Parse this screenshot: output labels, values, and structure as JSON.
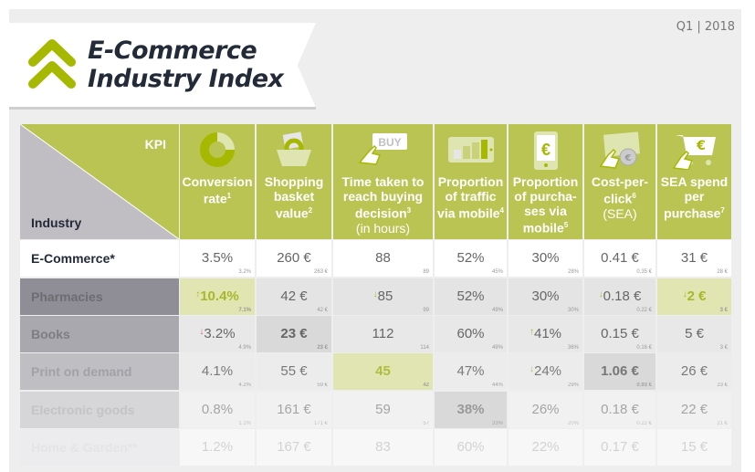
{
  "header": {
    "title_line1": "E-Commerce",
    "title_line2": "Industry Index",
    "period": "Q1 | 2018",
    "logo_icon": "double-chevron-up-icon"
  },
  "colors": {
    "accent": "#b9c452",
    "highlight": "#e0e5b1",
    "dark": "#232a38",
    "up_green": "#a7b82a",
    "down_red": "#e0607a"
  },
  "table": {
    "corner_kpi": "KPI",
    "corner_industry": "Industry",
    "columns": [
      {
        "label": "Conversion rate",
        "sup": "1",
        "sub": "",
        "icon": "donut-chart-icon"
      },
      {
        "label": "Shopping basket value",
        "sup": "2",
        "sub": "",
        "icon": "shopping-basket-icon"
      },
      {
        "label": "Time taken to reach buying decision",
        "sup": "3",
        "sub": "(in hours)",
        "icon": "buy-button-click-icon"
      },
      {
        "label": "Proportion of traffic via mobile",
        "sup": "4",
        "sub": "",
        "icon": "tablet-bar-chart-icon"
      },
      {
        "label": "Proportion of purcha-ses via mobile",
        "sup": "5",
        "sub": "",
        "icon": "phone-euro-icon"
      },
      {
        "label": "Cost-per-click",
        "sup": "6",
        "sub": "(SEA)",
        "icon": "banknote-click-icon"
      },
      {
        "label": "SEA spend per purchase",
        "sup": "7",
        "sub": "",
        "icon": "cart-euro-icon"
      }
    ],
    "rows": [
      {
        "name": "E-Commerce*",
        "cells": [
          {
            "v": "3.5%",
            "p": "3.2%"
          },
          {
            "v": "260 €",
            "p": "263 €"
          },
          {
            "v": "88",
            "p": "89"
          },
          {
            "v": "52%",
            "p": "45%"
          },
          {
            "v": "30%",
            "p": "28%"
          },
          {
            "v": "0.41 €",
            "p": "0.35 €"
          },
          {
            "v": "31 €",
            "p": "28 €"
          }
        ]
      },
      {
        "name": "Pharmacies",
        "cells": [
          {
            "v": "10.4%",
            "p": "7.1%",
            "arrow": "↑",
            "hl": true
          },
          {
            "v": "42 €",
            "p": "42 €"
          },
          {
            "v": "85",
            "p": "99",
            "arrow": "↓"
          },
          {
            "v": "52%",
            "p": "49%"
          },
          {
            "v": "30%",
            "p": "30%"
          },
          {
            "v": "0.18 €",
            "p": "0.22 €",
            "arrow": "↓"
          },
          {
            "v": "2 €",
            "p": "3 €",
            "arrow": "↓",
            "hl": true
          }
        ]
      },
      {
        "name": "Books",
        "cells": [
          {
            "v": "3.2%",
            "p": "4.9%",
            "arrow": "↓",
            "red": true
          },
          {
            "v": "23 €",
            "p": "23 €",
            "dark": true
          },
          {
            "v": "112",
            "p": "114"
          },
          {
            "v": "60%",
            "p": "49%"
          },
          {
            "v": "41%",
            "p": "36%",
            "arrow": "↑"
          },
          {
            "v": "0.15 €",
            "p": "0.16 €"
          },
          {
            "v": "5 €",
            "p": "3 €"
          }
        ]
      },
      {
        "name": "Print on demand",
        "cells": [
          {
            "v": "4.1%",
            "p": "4.2%"
          },
          {
            "v": "55 €",
            "p": "59 €"
          },
          {
            "v": "45",
            "p": "42",
            "hl": true
          },
          {
            "v": "47%",
            "p": "44%"
          },
          {
            "v": "24%",
            "p": "29%",
            "arrow": "↓"
          },
          {
            "v": "1.06 €",
            "p": "0.93 €",
            "dark": true
          },
          {
            "v": "26 €",
            "p": "23 €"
          }
        ]
      },
      {
        "name": "Electronic goods",
        "cells": [
          {
            "v": "0.8%",
            "p": "1.1%"
          },
          {
            "v": "161 €",
            "p": "171 €"
          },
          {
            "v": "59",
            "p": "57"
          },
          {
            "v": "38%",
            "p": "33%",
            "dark": true
          },
          {
            "v": "26%",
            "p": "20%"
          },
          {
            "v": "0.18 €",
            "p": "0.22 €"
          },
          {
            "v": "22 €",
            "p": "21 €"
          }
        ]
      },
      {
        "name": "Home & Garden**",
        "cells": [
          {
            "v": "1.2%"
          },
          {
            "v": "167 €"
          },
          {
            "v": "83"
          },
          {
            "v": "60%"
          },
          {
            "v": "22%"
          },
          {
            "v": "0.17 €"
          },
          {
            "v": "15 €"
          }
        ]
      }
    ]
  }
}
